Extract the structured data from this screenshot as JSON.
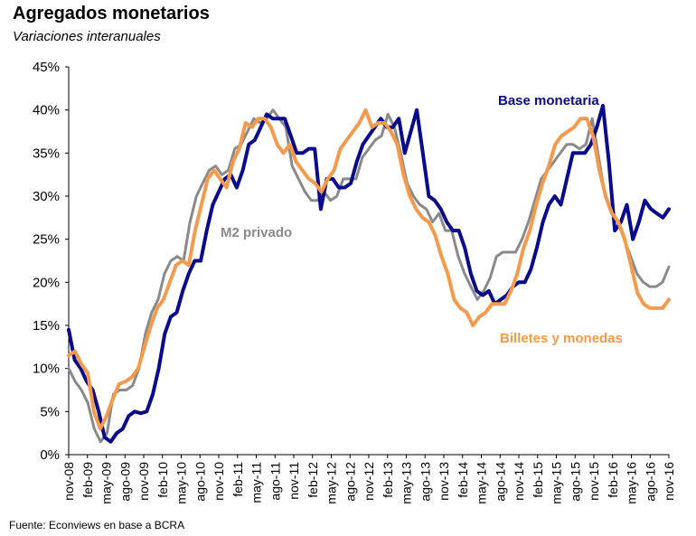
{
  "title": "Agregados monetarios",
  "subtitle": "Variaciones interanuales",
  "source": "Fuente: Econviews en base a BCRA",
  "colors": {
    "base": "#0a0a8c",
    "m2": "#8a8a8a",
    "billetes": "#f39a4c"
  },
  "chart_data": {
    "type": "line",
    "title": "Agregados monetarios",
    "subtitle": "Variaciones interanuales",
    "ylim": [
      0,
      45
    ],
    "y_ticks": [
      "0%",
      "5%",
      "10%",
      "15%",
      "20%",
      "25%",
      "30%",
      "35%",
      "40%",
      "45%"
    ],
    "x_ticks": [
      "nov-08",
      "feb-09",
      "may-09",
      "ago-09",
      "nov-09",
      "feb-10",
      "may-10",
      "ago-10",
      "nov-10",
      "feb-11",
      "may-11",
      "ago-11",
      "nov-11",
      "feb-12",
      "may-12",
      "ago-12",
      "nov-12",
      "feb-13",
      "may-13",
      "ago-13",
      "nov-13",
      "feb-14",
      "may-14",
      "ago-14",
      "nov-14",
      "feb-15",
      "may-15",
      "ago-15",
      "nov-15",
      "feb-16",
      "may-16",
      "ago-16",
      "nov-16"
    ],
    "x_start": "nov-08",
    "grid": false,
    "series": [
      {
        "name": "Base monetaria",
        "color": "#0a0a8c",
        "values": [
          14.5,
          11,
          10,
          8.5,
          7.5,
          5,
          2,
          1.5,
          2.5,
          3,
          4.5,
          5,
          4.8,
          5,
          7,
          10,
          14,
          16,
          16.5,
          19,
          21,
          22.5,
          22.5,
          26,
          29,
          30.5,
          32,
          32.5,
          31,
          33,
          36,
          36.5,
          38,
          39.5,
          39,
          39,
          39,
          37,
          35,
          35,
          35.5,
          35.5,
          28.5,
          32,
          32,
          31,
          31,
          31.5,
          34,
          36,
          37,
          38,
          39,
          38,
          38,
          39,
          35,
          37.5,
          40,
          35,
          30,
          29.5,
          28.5,
          27,
          26,
          26,
          24,
          21,
          19,
          18.5,
          19,
          17.5,
          18,
          18.5,
          19.5,
          20,
          20,
          21.5,
          24,
          27,
          29,
          30,
          29,
          32,
          35,
          35,
          35,
          36,
          38,
          40.5,
          34,
          26,
          27,
          29,
          25,
          27,
          29.5,
          28.5,
          28,
          27.5,
          28.5
        ],
        "label_left": 551,
        "label_top": 102
      },
      {
        "name": "M2 privado",
        "color": "#8a8a8a",
        "values": [
          10,
          8.5,
          7.5,
          6,
          3,
          1.5,
          2.5,
          7,
          7.5,
          7.5,
          8,
          10,
          14,
          16.5,
          18,
          21,
          22.5,
          23,
          22.5,
          27,
          30,
          31.5,
          33,
          33.5,
          32.5,
          33,
          35.5,
          36,
          37.5,
          39,
          38.5,
          39,
          40,
          39,
          38,
          33.5,
          32,
          30.5,
          29.5,
          29.5,
          30.5,
          29.5,
          30,
          32,
          32,
          32,
          34.5,
          35.5,
          36.5,
          37,
          39.5,
          38,
          35,
          31.5,
          30,
          29,
          28.5,
          27,
          28,
          26,
          26,
          23,
          21,
          19.5,
          18,
          19,
          20.5,
          23,
          23.5,
          23.5,
          23.5,
          25,
          27,
          29.5,
          32,
          33,
          34,
          35,
          36,
          36,
          35.5,
          36,
          39,
          34.5,
          30,
          28,
          27,
          25,
          23,
          21,
          20,
          19.5,
          19.5,
          20,
          21.8
        ],
        "label_left": 244,
        "label_top": 248
      },
      {
        "name": "Billetes y monedas",
        "color": "#f39a4c",
        "values": [
          11.5,
          12,
          10.5,
          9.5,
          5,
          3,
          4.5,
          6.5,
          8.2,
          8.5,
          9,
          10,
          12.5,
          15,
          17,
          18,
          20,
          22,
          22.5,
          22,
          26,
          29,
          32,
          33,
          32,
          31,
          34,
          35.5,
          38.5,
          38,
          39,
          39,
          38,
          36,
          35,
          36,
          34,
          33,
          32,
          31.5,
          30.5,
          32,
          33,
          35.5,
          36.5,
          37.5,
          38.5,
          40,
          38,
          38.5,
          38.5,
          37.5,
          36,
          32.5,
          30,
          28.5,
          27.5,
          27,
          25.5,
          23,
          21,
          18,
          17,
          16.5,
          15,
          16,
          16.5,
          17.5,
          17.5,
          17.5,
          19,
          21,
          24,
          26,
          29,
          31.5,
          33.5,
          36,
          37,
          37.5,
          38,
          39,
          39,
          37,
          33,
          30,
          28,
          27,
          25,
          22,
          18.8,
          17.5,
          17,
          17,
          17,
          18
        ],
        "label_left": 553,
        "label_top": 365
      }
    ]
  }
}
